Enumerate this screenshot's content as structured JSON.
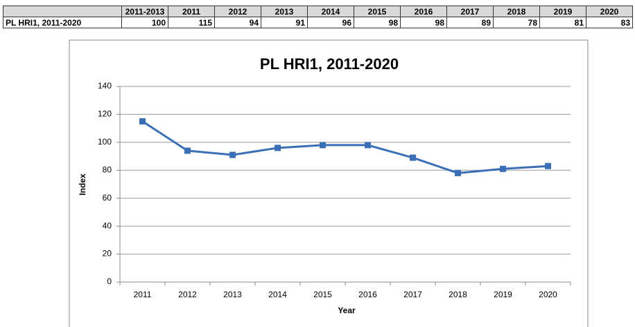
{
  "table": {
    "columns": [
      "2011-2013",
      "2011",
      "2012",
      "2013",
      "2014",
      "2015",
      "2016",
      "2017",
      "2018",
      "2019",
      "2020"
    ],
    "rows": [
      {
        "label": "PL HRI1, 2011-2020",
        "cells": [
          100,
          115,
          94,
          91,
          96,
          98,
          98,
          89,
          78,
          81,
          83
        ]
      }
    ]
  },
  "chart_data": {
    "type": "line",
    "title": "PL HRI1, 2011-2020",
    "x_label": "Year",
    "y_label": "Index",
    "categories": [
      "2011",
      "2012",
      "2013",
      "2014",
      "2015",
      "2016",
      "2017",
      "2018",
      "2019",
      "2020"
    ],
    "series": [
      {
        "name": "PL HRI1, 2011-2020",
        "color": "#3a6fb8",
        "values": [
          115,
          94,
          91,
          96,
          98,
          98,
          89,
          78,
          81,
          83
        ]
      }
    ],
    "ylim": [
      0,
      140
    ],
    "yticks": [
      0,
      20,
      40,
      60,
      80,
      100,
      120,
      140
    ],
    "grid": true,
    "legend": false
  }
}
